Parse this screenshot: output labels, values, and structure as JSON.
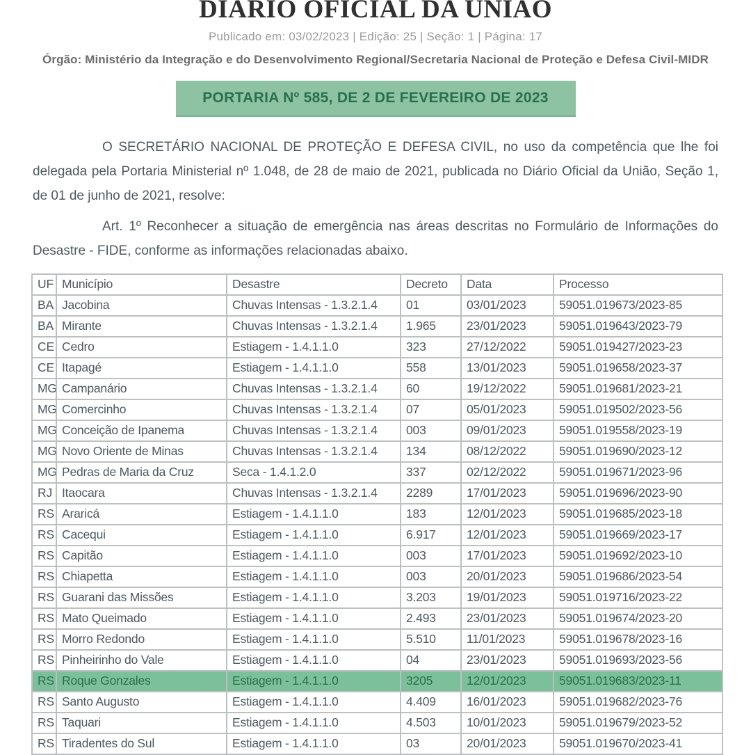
{
  "header": {
    "title": "DIÁRIO OFICIAL DA UNIÃO",
    "published_line": "Publicado em: 03/02/2023 | Edição: 25 | Seção: 1 | Página: 17",
    "organ_line": "Órgão: Ministério da Integração e do Desenvolvimento Regional/Secretaria Nacional de Proteção e Defesa Civil-MIDR"
  },
  "portaria": {
    "banner_text": "PORTARIA Nº 585, DE 2 DE FEVEREIRO DE 2023",
    "paragraphs": [
      "O SECRETÁRIO NACIONAL DE PROTEÇÃO E DEFESA CIVIL, no uso da competência que lhe foi delegada pela Portaria Ministerial nº 1.048, de 28 de maio de 2021, publicada no Diário Oficial da União, Seção 1, de 01 de junho de 2021, resolve:",
      "Art. 1º Reconhecer a situação de emergência nas áreas descritas no Formulário de Informações do Desastre - FIDE, conforme as informações relacionadas abaixo."
    ]
  },
  "colors": {
    "banner_bg": "#8dc3a2",
    "banner_text": "#2a7050",
    "highlight_bg": "#7cc09b",
    "highlight_text": "#2c6f4f",
    "body_text": "#4e5961",
    "muted_text": "#9c9c9c",
    "table_border": "#bcc0c0"
  },
  "table": {
    "columns": [
      "UF",
      "Município",
      "Desastre",
      "Decreto",
      "Data",
      "Processo"
    ],
    "highlighted_row_index": 18,
    "rows": [
      [
        "BA",
        "Jacobina",
        "Chuvas Intensas - 1.3.2.1.4",
        "01",
        "03/01/2023",
        "59051.019673/2023-85"
      ],
      [
        "BA",
        "Mirante",
        "Chuvas Intensas - 1.3.2.1.4",
        "1.965",
        "23/01/2023",
        "59051.019643/2023-79"
      ],
      [
        "CE",
        "Cedro",
        "Estiagem - 1.4.1.1.0",
        "323",
        "27/12/2022",
        "59051.019427/2023-23"
      ],
      [
        "CE",
        "Itapagé",
        "Estiagem - 1.4.1.1.0",
        "558",
        "13/01/2023",
        "59051.019658/2023-37"
      ],
      [
        "MG",
        "Campanário",
        "Chuvas Intensas - 1.3.2.1.4",
        "60",
        "19/12/2022",
        "59051.019681/2023-21"
      ],
      [
        "MG",
        "Comercinho",
        "Chuvas Intensas - 1.3.2.1.4",
        "07",
        "05/01/2023",
        "59051.019502/2023-56"
      ],
      [
        "MG",
        "Conceição de Ipanema",
        "Chuvas Intensas - 1.3.2.1.4",
        "003",
        "09/01/2023",
        "59051.019558/2023-19"
      ],
      [
        "MG",
        "Novo Oriente de Minas",
        "Chuvas Intensas - 1.3.2.1.4",
        "134",
        "08/12/2022",
        "59051.019690/2023-12"
      ],
      [
        "MG",
        "Pedras de Maria da Cruz",
        "Seca - 1.4.1.2.0",
        "337",
        "02/12/2022",
        "59051.019671/2023-96"
      ],
      [
        "RJ",
        "Itaocara",
        "Chuvas Intensas - 1.3.2.1.4",
        "2289",
        "17/01/2023",
        "59051.019696/2023-90"
      ],
      [
        "RS",
        "Araricá",
        "Estiagem - 1.4.1.1.0",
        "183",
        "12/01/2023",
        "59051.019685/2023-18"
      ],
      [
        "RS",
        "Cacequi",
        "Estiagem - 1.4.1.1.0",
        "6.917",
        "12/01/2023",
        "59051.019669/2023-17"
      ],
      [
        "RS",
        "Capitão",
        "Estiagem - 1.4.1.1.0",
        "003",
        "17/01/2023",
        "59051.019692/2023-10"
      ],
      [
        "RS",
        "Chiapetta",
        "Estiagem - 1.4.1.1.0",
        "003",
        "20/01/2023",
        "59051.019686/2023-54"
      ],
      [
        "RS",
        "Guarani das Missões",
        "Estiagem - 1.4.1.1.0",
        "3.203",
        "19/01/2023",
        "59051.019716/2023-22"
      ],
      [
        "RS",
        "Mato Queimado",
        "Estiagem - 1.4.1.1.0",
        "2.493",
        "23/01/2023",
        "59051.019674/2023-20"
      ],
      [
        "RS",
        "Morro Redondo",
        "Estiagem - 1.4.1.1.0",
        "5.510",
        "11/01/2023",
        "59051.019678/2023-16"
      ],
      [
        "RS",
        "Pinheirinho do Vale",
        "Estiagem - 1.4.1.1.0",
        "04",
        "23/01/2023",
        "59051.019693/2023-56"
      ],
      [
        "RS",
        "Roque Gonzales",
        "Estiagem - 1.4.1.1.0",
        "3205",
        "12/01/2023",
        "59051.019683/2023-11"
      ],
      [
        "RS",
        "Santo Augusto",
        "Estiagem - 1.4.1.1.0",
        "4.409",
        "16/01/2023",
        "59051.019682/2023-76"
      ],
      [
        "RS",
        "Taquari",
        "Estiagem - 1.4.1.1.0",
        "4.503",
        "10/01/2023",
        "59051.019679/2023-52"
      ],
      [
        "RS",
        "Tiradentes do Sul",
        "Estiagem - 1.4.1.1.0",
        "03",
        "20/01/2023",
        "59051.019670/2023-41"
      ]
    ]
  }
}
